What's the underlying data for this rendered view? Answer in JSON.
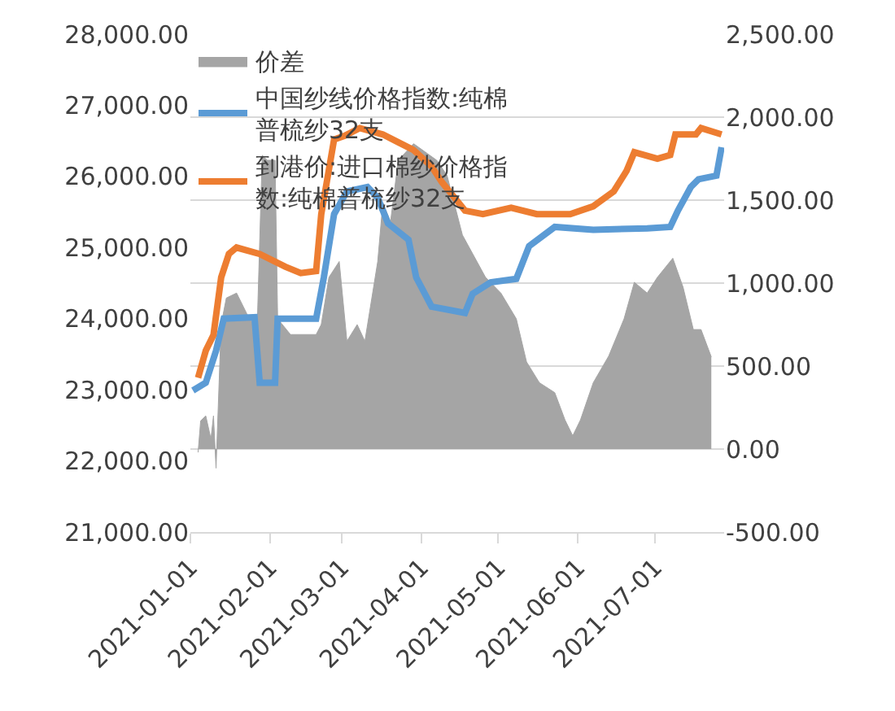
{
  "chart_data": {
    "type": "line",
    "series": [
      {
        "name": "价差",
        "type": "area",
        "axis": "y2",
        "color": "#a5a5a5",
        "x": [
          "2021-01-04",
          "2021-01-05",
          "2021-01-07",
          "2021-01-09",
          "2021-01-10",
          "2021-01-11",
          "2021-01-13",
          "2021-01-15",
          "2021-01-19",
          "2021-01-23",
          "2021-01-27",
          "2021-01-29",
          "2021-01-31",
          "2021-02-03",
          "2021-02-04",
          "2021-02-09",
          "2021-02-19",
          "2021-02-21",
          "2021-02-24",
          "2021-02-28",
          "2021-03-03",
          "2021-03-07",
          "2021-03-10",
          "2021-03-15",
          "2021-03-17",
          "2021-03-20",
          "2021-03-23",
          "2021-03-29",
          "2021-04-07",
          "2021-04-11",
          "2021-04-17",
          "2021-04-26",
          "2021-05-02",
          "2021-05-08",
          "2021-05-12",
          "2021-05-17",
          "2021-05-23",
          "2021-05-27",
          "2021-05-30",
          "2021-06-02",
          "2021-06-07",
          "2021-06-13",
          "2021-06-19",
          "2021-06-23",
          "2021-06-28",
          "2021-07-02",
          "2021-07-08",
          "2021-07-12",
          "2021-07-16",
          "2021-07-19",
          "2021-07-23"
        ],
        "values": [
          -20,
          170,
          200,
          60,
          200,
          -115,
          750,
          910,
          940,
          815,
          720,
          1770,
          1740,
          1740,
          785,
          690,
          690,
          750,
          1035,
          1130,
          650,
          750,
          650,
          1130,
          1485,
          1370,
          1740,
          1840,
          1740,
          1650,
          1290,
          1035,
          940,
          785,
          525,
          400,
          340,
          175,
          80,
          175,
          400,
          560,
          785,
          1005,
          940,
          1035,
          1150,
          975,
          720,
          720,
          555
        ]
      },
      {
        "name": "中国纱线价格指数:纯棉普梳纱32支",
        "color": "#5b9bd5",
        "x": [
          "2021-01-02",
          "2021-01-07",
          "2021-01-11",
          "2021-01-14",
          "2021-01-26",
          "2021-01-28",
          "2021-02-03",
          "2021-02-04",
          "2021-02-19",
          "2021-02-22",
          "2021-02-26",
          "2021-03-03",
          "2021-03-11",
          "2021-03-15",
          "2021-03-19",
          "2021-03-27",
          "2021-03-30",
          "2021-04-05",
          "2021-04-18",
          "2021-04-21",
          "2021-04-28",
          "2021-05-08",
          "2021-05-13",
          "2021-05-23",
          "2021-06-07",
          "2021-06-28",
          "2021-07-07",
          "2021-07-10",
          "2021-07-15",
          "2021-07-18",
          "2021-07-25",
          "2021-07-27"
        ],
        "values": [
          22990,
          23100,
          23550,
          24000,
          24020,
          23100,
          23100,
          24000,
          24000,
          24580,
          25470,
          25790,
          25850,
          25700,
          25340,
          25110,
          24580,
          24170,
          24080,
          24350,
          24510,
          24560,
          25020,
          25290,
          25250,
          25270,
          25290,
          25520,
          25850,
          25960,
          26010,
          26410
        ]
      },
      {
        "name": "到港价:进口棉纱价格指数:纯棉普梳纱32支",
        "color": "#ed7d31",
        "x": [
          "2021-01-04",
          "2021-01-07",
          "2021-01-10",
          "2021-01-13",
          "2021-01-16",
          "2021-01-19",
          "2021-01-28",
          "2021-02-07",
          "2021-02-13",
          "2021-02-19",
          "2021-02-21",
          "2021-02-26",
          "2021-03-02",
          "2021-03-08",
          "2021-03-17",
          "2021-03-23",
          "2021-03-29",
          "2021-04-05",
          "2021-04-09",
          "2021-04-18",
          "2021-04-25",
          "2021-05-06",
          "2021-05-16",
          "2021-05-29",
          "2021-06-07",
          "2021-06-15",
          "2021-06-20",
          "2021-06-23",
          "2021-07-02",
          "2021-07-07",
          "2021-07-09",
          "2021-07-17",
          "2021-07-19",
          "2021-07-27"
        ],
        "values": [
          23170,
          23550,
          23770,
          24580,
          24910,
          25000,
          24910,
          24730,
          24640,
          24670,
          25470,
          26520,
          26570,
          26680,
          26590,
          26480,
          26370,
          26140,
          25920,
          25520,
          25470,
          25560,
          25470,
          25470,
          25580,
          25790,
          26080,
          26340,
          26250,
          26300,
          26590,
          26590,
          26680,
          26590
        ]
      }
    ],
    "xlim": [
      "2021-01-01",
      "2021-07-28"
    ],
    "xticks": [
      "2021-01-01",
      "2021-02-01",
      "2021-03-01",
      "2021-04-01",
      "2021-05-01",
      "2021-06-01",
      "2021-07-01"
    ],
    "ylim": [
      21000,
      28000
    ],
    "yticks": [
      {
        "value": 21000,
        "label": "21,000.00"
      },
      {
        "value": 22000,
        "label": "22,000.00"
      },
      {
        "value": 23000,
        "label": "23,000.00"
      },
      {
        "value": 24000,
        "label": "24,000.00"
      },
      {
        "value": 25000,
        "label": "25,000.00"
      },
      {
        "value": 26000,
        "label": "26,000.00"
      },
      {
        "value": 27000,
        "label": "27,000.00"
      },
      {
        "value": 28000,
        "label": "28,000.00"
      }
    ],
    "y2lim": [
      -500,
      2500
    ],
    "y2ticks": [
      {
        "value": -500,
        "label": "-500.00"
      },
      {
        "value": 0,
        "label": "0.00"
      },
      {
        "value": 500,
        "label": "500.00"
      },
      {
        "value": 1000,
        "label": "1,000.00"
      },
      {
        "value": 1500,
        "label": "1,500.00"
      },
      {
        "value": 2000,
        "label": "2,000.00"
      },
      {
        "value": 2500,
        "label": "2,500.00"
      }
    ],
    "grid": "y",
    "legend": "top left"
  }
}
